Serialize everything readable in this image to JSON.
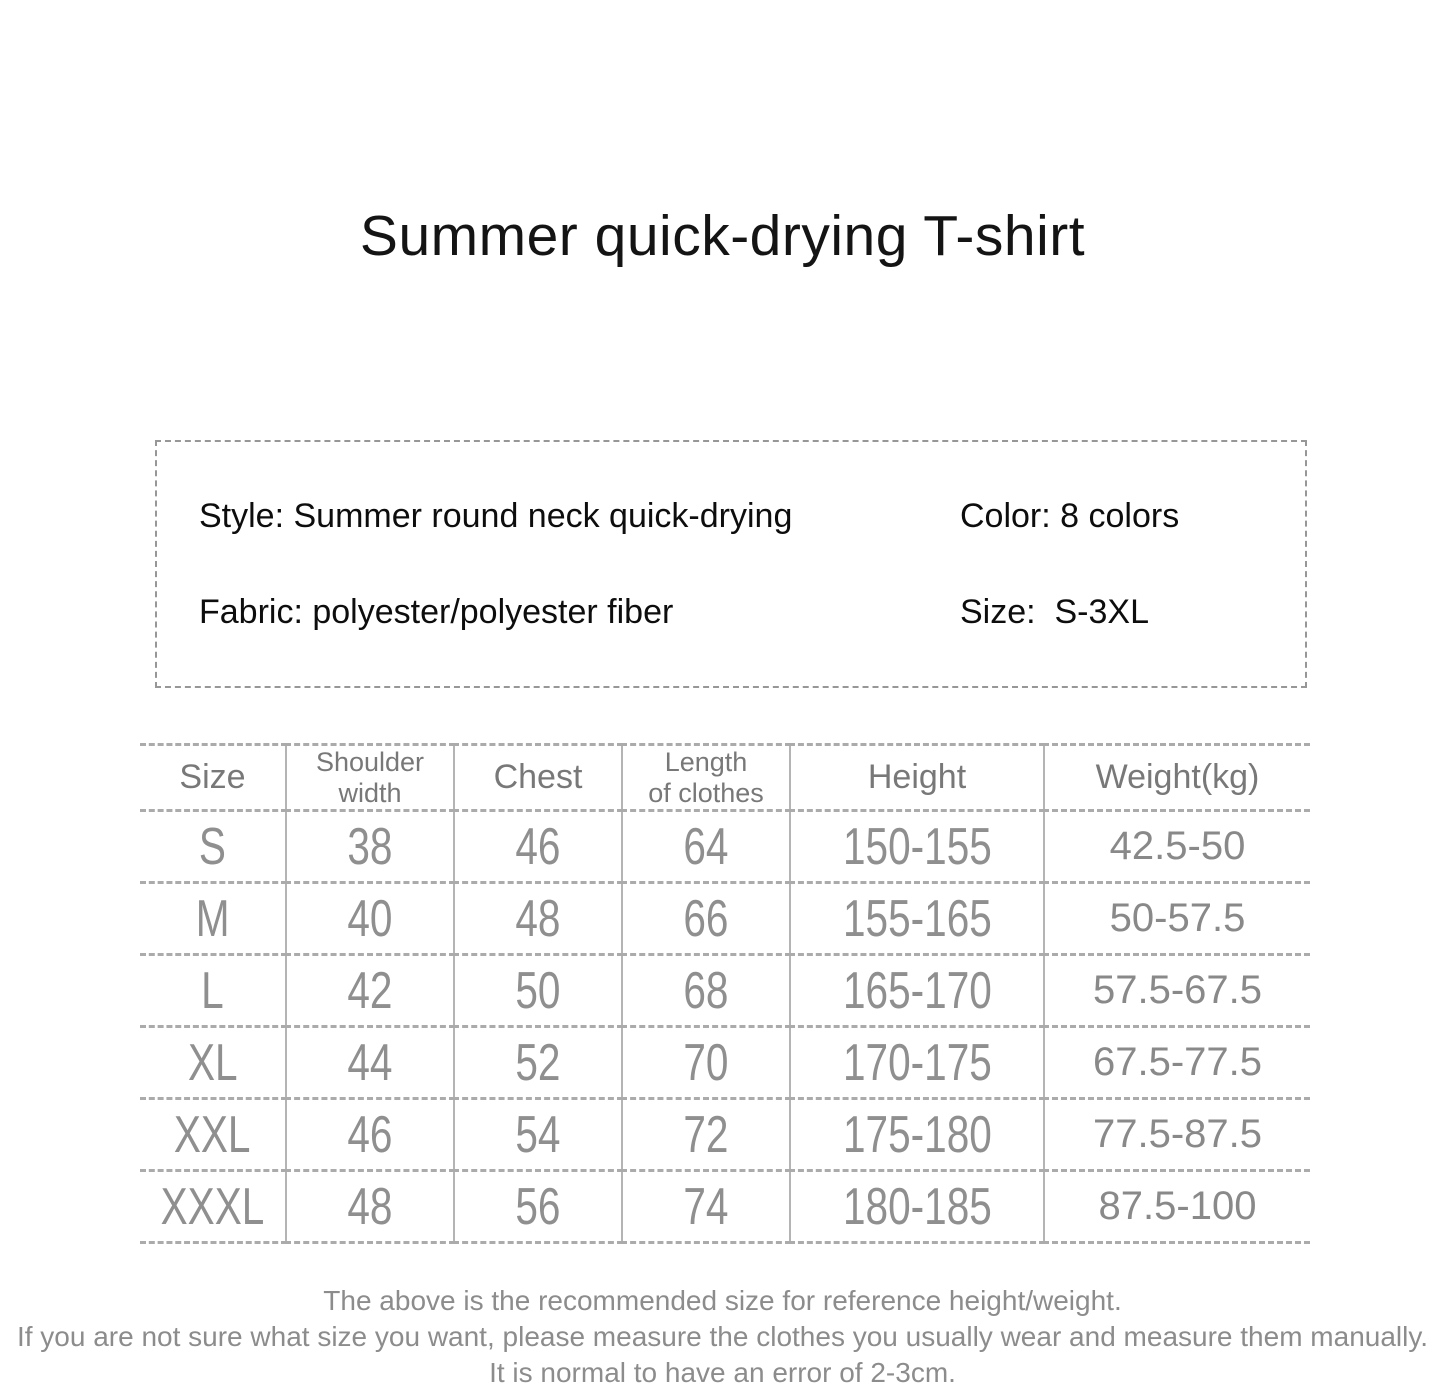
{
  "page": {
    "title": "Summer quick-drying T-shirt"
  },
  "info_box": {
    "style": "Style: Summer round neck quick-drying",
    "color": "Color: 8 colors",
    "fabric": "Fabric: polyester/polyester fiber",
    "size": "Size:  S-3XL"
  },
  "size_table": {
    "columns": [
      "Size",
      "Shoulder\nwidth",
      "Chest",
      "Length\nof clothes",
      "Height",
      "Weight(kg)"
    ],
    "rows": [
      [
        "S",
        "38",
        "46",
        "64",
        "150-155",
        "42.5-50"
      ],
      [
        "M",
        "40",
        "48",
        "66",
        "155-165",
        "50-57.5"
      ],
      [
        "L",
        "42",
        "50",
        "68",
        "165-170",
        "57.5-67.5"
      ],
      [
        "XL",
        "44",
        "52",
        "70",
        "170-175",
        "67.5-77.5"
      ],
      [
        "XXL",
        "46",
        "54",
        "72",
        "175-180",
        "77.5-87.5"
      ],
      [
        "XXXL",
        "48",
        "56",
        "74",
        "180-185",
        "87.5-100"
      ]
    ]
  },
  "footnote": {
    "line1": "The above is the recommended size for reference height/weight.",
    "line2": "If you are not sure what size you want, please measure the clothes you usually wear and measure them manually.",
    "line3": "It is normal to have an error of 2-3cm."
  },
  "colors": {
    "text_primary": "#141414",
    "text_muted": "#8c8c8c",
    "table_line": "#ababab",
    "background": "#ffffff"
  }
}
